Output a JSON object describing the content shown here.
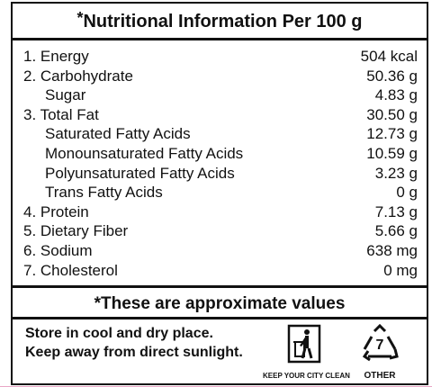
{
  "header": {
    "mark": "*",
    "title": "Nutritional Information Per 100 g"
  },
  "items": [
    {
      "label": "1. Energy",
      "value": "504 kcal"
    },
    {
      "label": "2. Carbohydrate",
      "value": "50.36 g",
      "sub": [
        {
          "label": "Sugar",
          "value": "4.83 g"
        }
      ]
    },
    {
      "label": "3. Total Fat",
      "value": "30.50 g",
      "sub": [
        {
          "label": "Saturated Fatty Acids",
          "value": "12.73 g"
        },
        {
          "label": "Monounsaturated Fatty Acids",
          "value": "10.59 g"
        },
        {
          "label": "Polyunsaturated Fatty Acids",
          "value": "3.23 g"
        },
        {
          "label": "Trans Fatty Acids",
          "value": "0 g"
        }
      ]
    },
    {
      "label": "4. Protein",
      "value": "7.13 g"
    },
    {
      "label": "5. Dietary Fiber",
      "value": "5.66 g"
    },
    {
      "label": "6. Sodium",
      "value": "638 mg"
    },
    {
      "label": "7. Cholesterol",
      "value": "0 mg"
    }
  ],
  "note": "*These are approximate values",
  "storage": [
    "Store in cool and dry place.",
    "Keep away from direct sunlight."
  ],
  "icons": {
    "bin_caption": "KEEP YOUR CITY CLEAN",
    "recycle_code": "7",
    "recycle_caption": "OTHER"
  }
}
